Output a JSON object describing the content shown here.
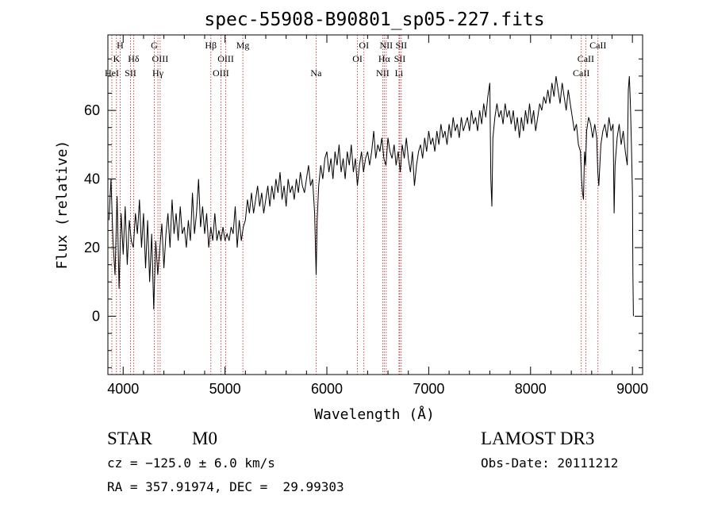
{
  "chart_data": {
    "type": "line",
    "title": "spec-55908-B90801_sp05-227.fits",
    "xlabel": "Wavelength (Å)",
    "ylabel": "Flux (relative)",
    "xlim": [
      3850,
      9100
    ],
    "ylim": [
      -17,
      82
    ],
    "xticks": [
      4000,
      5000,
      6000,
      7000,
      8000,
      9000
    ],
    "yticks": [
      0,
      20,
      40,
      60
    ],
    "spectrum": [
      [
        3860,
        28
      ],
      [
        3880,
        40
      ],
      [
        3900,
        22
      ],
      [
        3920,
        12
      ],
      [
        3940,
        35
      ],
      [
        3960,
        8
      ],
      [
        3980,
        30
      ],
      [
        4000,
        18
      ],
      [
        4020,
        32
      ],
      [
        4040,
        15
      ],
      [
        4060,
        28
      ],
      [
        4080,
        22
      ],
      [
        4100,
        20
      ],
      [
        4120,
        30
      ],
      [
        4140,
        24
      ],
      [
        4160,
        34
      ],
      [
        4180,
        20
      ],
      [
        4200,
        30
      ],
      [
        4220,
        14
      ],
      [
        4240,
        28
      ],
      [
        4260,
        10
      ],
      [
        4280,
        24
      ],
      [
        4300,
        2
      ],
      [
        4320,
        22
      ],
      [
        4340,
        12
      ],
      [
        4360,
        20
      ],
      [
        4380,
        27
      ],
      [
        4400,
        14
      ],
      [
        4420,
        24
      ],
      [
        4440,
        30
      ],
      [
        4460,
        20
      ],
      [
        4480,
        34
      ],
      [
        4500,
        24
      ],
      [
        4520,
        30
      ],
      [
        4540,
        22
      ],
      [
        4560,
        32
      ],
      [
        4580,
        24
      ],
      [
        4600,
        26
      ],
      [
        4620,
        20
      ],
      [
        4640,
        28
      ],
      [
        4660,
        22
      ],
      [
        4680,
        36
      ],
      [
        4700,
        24
      ],
      [
        4720,
        30
      ],
      [
        4740,
        40
      ],
      [
        4760,
        26
      ],
      [
        4780,
        32
      ],
      [
        4800,
        24
      ],
      [
        4820,
        30
      ],
      [
        4840,
        20
      ],
      [
        4860,
        26
      ],
      [
        4880,
        22
      ],
      [
        4900,
        30
      ],
      [
        4920,
        22
      ],
      [
        4940,
        25
      ],
      [
        4960,
        22
      ],
      [
        4980,
        26
      ],
      [
        5000,
        22
      ],
      [
        5020,
        24
      ],
      [
        5040,
        22
      ],
      [
        5060,
        26
      ],
      [
        5080,
        24
      ],
      [
        5100,
        32
      ],
      [
        5120,
        20
      ],
      [
        5140,
        28
      ],
      [
        5160,
        22
      ],
      [
        5180,
        26
      ],
      [
        5200,
        28
      ],
      [
        5220,
        34
      ],
      [
        5240,
        30
      ],
      [
        5260,
        36
      ],
      [
        5280,
        30
      ],
      [
        5300,
        34
      ],
      [
        5320,
        38
      ],
      [
        5340,
        32
      ],
      [
        5360,
        36
      ],
      [
        5380,
        30
      ],
      [
        5400,
        34
      ],
      [
        5420,
        38
      ],
      [
        5440,
        32
      ],
      [
        5460,
        38
      ],
      [
        5480,
        34
      ],
      [
        5500,
        40
      ],
      [
        5520,
        36
      ],
      [
        5540,
        42
      ],
      [
        5560,
        34
      ],
      [
        5580,
        38
      ],
      [
        5600,
        32
      ],
      [
        5620,
        40
      ],
      [
        5640,
        36
      ],
      [
        5660,
        38
      ],
      [
        5680,
        34
      ],
      [
        5700,
        40
      ],
      [
        5720,
        36
      ],
      [
        5740,
        42
      ],
      [
        5760,
        38
      ],
      [
        5780,
        36
      ],
      [
        5800,
        40
      ],
      [
        5820,
        44
      ],
      [
        5840,
        38
      ],
      [
        5860,
        40
      ],
      [
        5880,
        30
      ],
      [
        5895,
        12
      ],
      [
        5905,
        28
      ],
      [
        5920,
        38
      ],
      [
        5940,
        44
      ],
      [
        5960,
        40
      ],
      [
        5980,
        46
      ],
      [
        6000,
        48
      ],
      [
        6020,
        42
      ],
      [
        6040,
        46
      ],
      [
        6060,
        40
      ],
      [
        6080,
        48
      ],
      [
        6100,
        44
      ],
      [
        6120,
        50
      ],
      [
        6140,
        42
      ],
      [
        6160,
        46
      ],
      [
        6180,
        40
      ],
      [
        6200,
        48
      ],
      [
        6220,
        44
      ],
      [
        6240,
        50
      ],
      [
        6260,
        42
      ],
      [
        6280,
        46
      ],
      [
        6300,
        38
      ],
      [
        6320,
        44
      ],
      [
        6340,
        48
      ],
      [
        6360,
        42
      ],
      [
        6380,
        46
      ],
      [
        6400,
        48
      ],
      [
        6420,
        44
      ],
      [
        6440,
        48
      ],
      [
        6460,
        54
      ],
      [
        6480,
        46
      ],
      [
        6500,
        50
      ],
      [
        6520,
        48
      ],
      [
        6540,
        52
      ],
      [
        6560,
        46
      ],
      [
        6580,
        44
      ],
      [
        6600,
        52
      ],
      [
        6620,
        48
      ],
      [
        6640,
        46
      ],
      [
        6660,
        50
      ],
      [
        6680,
        44
      ],
      [
        6700,
        48
      ],
      [
        6720,
        42
      ],
      [
        6740,
        50
      ],
      [
        6760,
        46
      ],
      [
        6780,
        52
      ],
      [
        6800,
        46
      ],
      [
        6820,
        42
      ],
      [
        6840,
        48
      ],
      [
        6860,
        38
      ],
      [
        6880,
        44
      ],
      [
        6900,
        48
      ],
      [
        6920,
        50
      ],
      [
        6940,
        46
      ],
      [
        6960,
        52
      ],
      [
        6980,
        48
      ],
      [
        7000,
        54
      ],
      [
        7020,
        50
      ],
      [
        7040,
        52
      ],
      [
        7060,
        48
      ],
      [
        7080,
        54
      ],
      [
        7100,
        50
      ],
      [
        7120,
        56
      ],
      [
        7140,
        52
      ],
      [
        7160,
        54
      ],
      [
        7180,
        50
      ],
      [
        7200,
        56
      ],
      [
        7220,
        52
      ],
      [
        7240,
        58
      ],
      [
        7260,
        54
      ],
      [
        7280,
        56
      ],
      [
        7300,
        52
      ],
      [
        7320,
        58
      ],
      [
        7340,
        54
      ],
      [
        7360,
        56
      ],
      [
        7380,
        58
      ],
      [
        7400,
        54
      ],
      [
        7420,
        60
      ],
      [
        7440,
        56
      ],
      [
        7460,
        58
      ],
      [
        7480,
        54
      ],
      [
        7500,
        60
      ],
      [
        7520,
        56
      ],
      [
        7540,
        62
      ],
      [
        7560,
        58
      ],
      [
        7580,
        64
      ],
      [
        7600,
        68
      ],
      [
        7610,
        40
      ],
      [
        7620,
        32
      ],
      [
        7630,
        52
      ],
      [
        7650,
        58
      ],
      [
        7670,
        62
      ],
      [
        7690,
        58
      ],
      [
        7710,
        60
      ],
      [
        7730,
        56
      ],
      [
        7750,
        62
      ],
      [
        7770,
        58
      ],
      [
        7790,
        60
      ],
      [
        7810,
        56
      ],
      [
        7830,
        60
      ],
      [
        7850,
        54
      ],
      [
        7870,
        58
      ],
      [
        7890,
        52
      ],
      [
        7910,
        58
      ],
      [
        7930,
        54
      ],
      [
        7950,
        60
      ],
      [
        7970,
        56
      ],
      [
        7990,
        62
      ],
      [
        8010,
        56
      ],
      [
        8030,
        60
      ],
      [
        8050,
        54
      ],
      [
        8070,
        58
      ],
      [
        8090,
        62
      ],
      [
        8110,
        60
      ],
      [
        8130,
        64
      ],
      [
        8150,
        62
      ],
      [
        8170,
        66
      ],
      [
        8190,
        62
      ],
      [
        8210,
        68
      ],
      [
        8230,
        64
      ],
      [
        8250,
        70
      ],
      [
        8270,
        66
      ],
      [
        8290,
        62
      ],
      [
        8310,
        68
      ],
      [
        8330,
        64
      ],
      [
        8350,
        60
      ],
      [
        8370,
        66
      ],
      [
        8390,
        62
      ],
      [
        8410,
        58
      ],
      [
        8430,
        54
      ],
      [
        8450,
        56
      ],
      [
        8470,
        50
      ],
      [
        8490,
        48
      ],
      [
        8500,
        40
      ],
      [
        8510,
        36
      ],
      [
        8520,
        34
      ],
      [
        8530,
        48
      ],
      [
        8540,
        44
      ],
      [
        8550,
        54
      ],
      [
        8570,
        58
      ],
      [
        8590,
        56
      ],
      [
        8610,
        52
      ],
      [
        8630,
        56
      ],
      [
        8650,
        52
      ],
      [
        8660,
        42
      ],
      [
        8670,
        38
      ],
      [
        8690,
        50
      ],
      [
        8710,
        54
      ],
      [
        8730,
        56
      ],
      [
        8750,
        52
      ],
      [
        8770,
        58
      ],
      [
        8790,
        54
      ],
      [
        8810,
        56
      ],
      [
        8820,
        30
      ],
      [
        8830,
        44
      ],
      [
        8850,
        52
      ],
      [
        8870,
        56
      ],
      [
        8890,
        50
      ],
      [
        8910,
        54
      ],
      [
        8930,
        48
      ],
      [
        8950,
        44
      ],
      [
        8960,
        66
      ],
      [
        8970,
        70
      ],
      [
        8980,
        62
      ],
      [
        8990,
        50
      ],
      [
        9000,
        36
      ],
      [
        9005,
        12
      ],
      [
        9010,
        0
      ]
    ],
    "line_markers": [
      {
        "wl": 3889,
        "label": "HeI",
        "row": 3
      },
      {
        "wl": 3934,
        "label": "K",
        "row": 2
      },
      {
        "wl": 3970,
        "label": "H",
        "row": 1
      },
      {
        "wl": 4072,
        "label": "SII",
        "row": 3
      },
      {
        "wl": 4102,
        "label": "Hδ",
        "row": 2
      },
      {
        "wl": 4305,
        "label": "G",
        "row": 1
      },
      {
        "wl": 4341,
        "label": "Hγ",
        "row": 3
      },
      {
        "wl": 4363,
        "label": "OIII",
        "row": 2
      },
      {
        "wl": 4861,
        "label": "Hβ",
        "row": 1
      },
      {
        "wl": 4959,
        "label": "OIII",
        "row": 3
      },
      {
        "wl": 5007,
        "label": "OIII",
        "row": 2
      },
      {
        "wl": 5175,
        "label": "Mg",
        "row": 1
      },
      {
        "wl": 5894,
        "label": "Na",
        "row": 3
      },
      {
        "wl": 6300,
        "label": "OI",
        "row": 2
      },
      {
        "wl": 6364,
        "label": "OI",
        "row": 1
      },
      {
        "wl": 6548,
        "label": "NII",
        "row": 3
      },
      {
        "wl": 6563,
        "label": "Hα",
        "row": 2
      },
      {
        "wl": 6583,
        "label": "NII",
        "row": 1
      },
      {
        "wl": 6716,
        "label": "SII",
        "row": 2
      },
      {
        "wl": 6731,
        "label": "SII",
        "row": 1
      },
      {
        "wl": 6708,
        "label": "Li",
        "row": 3
      },
      {
        "wl": 8498,
        "label": "CaII",
        "row": 3
      },
      {
        "wl": 8542,
        "label": "CaII",
        "row": 2
      },
      {
        "wl": 8662,
        "label": "CaII",
        "row": 1
      }
    ]
  },
  "info": {
    "class": "STAR",
    "subclass": "M0",
    "survey": "LAMOST DR3",
    "cz": "cz = −125.0 ± 6.0 km/s",
    "obs_date": "Obs-Date: 20111212",
    "coords": "RA = 357.91974, DEC =  29.99303"
  },
  "colors": {
    "marker": "#b22222",
    "spectrum": "#000000"
  }
}
